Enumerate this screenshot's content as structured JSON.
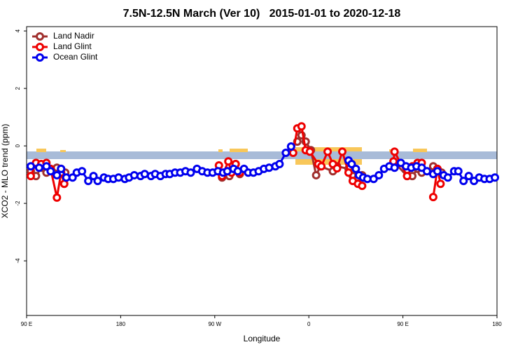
{
  "chart_data": {
    "type": "line",
    "title": "7.5N-12.5N March (Ver 10)   2015-01-01 to 2020-12-18",
    "xlabel": "Longitude",
    "ylabel": "XCO2 - MLO trend (ppm)",
    "xlim": [
      90,
      540
    ],
    "ylim": [
      -5.9,
      4.15
    ],
    "xticks": [
      {
        "value": 90,
        "label": "90 E"
      },
      180,
      {
        "value": 270,
        "label": "90 W"
      },
      {
        "value": 360,
        "label": "0"
      },
      {
        "value": 450,
        "label": "90 E"
      },
      {
        "value": 540,
        "label": "180"
      }
    ],
    "yticks": [
      -4,
      -2,
      0,
      2,
      4
    ],
    "legend": "upper left",
    "series": [
      {
        "name": "Land Nadir",
        "color": "#a0302e",
        "x": [
          94,
          99,
          104,
          109,
          119,
          123,
          127,
          null,
          277,
          284,
          288,
          290,
          294,
          null,
          349,
          353,
          357,
          362,
          367,
          371,
          383,
          387,
          398,
          402,
          407,
          411,
          null,
          438,
          441,
          454,
          459,
          464,
          468,
          479,
          483,
          487
        ],
        "values": [
          -0.88,
          -1.05,
          -0.76,
          -0.93,
          -0.76,
          -0.8,
          -0.93,
          null,
          -1.1,
          -1.05,
          -0.8,
          -0.63,
          -0.98,
          null,
          0.15,
          0.37,
          0.15,
          -0.15,
          -1.02,
          -0.71,
          -0.88,
          -0.71,
          -0.8,
          -1.05,
          -1.1,
          -1.02,
          null,
          -0.71,
          -0.54,
          -1.05,
          -1.05,
          -0.8,
          -0.93,
          -0.71,
          -0.8,
          -0.93
        ]
      },
      {
        "name": "Land Glint",
        "color": "#ee0000",
        "x": [
          94,
          99,
          104,
          109,
          113,
          119,
          123,
          126,
          null,
          274,
          277,
          283,
          286,
          290,
          294,
          null,
          345,
          349,
          353,
          357,
          361,
          369,
          372,
          378,
          383,
          387,
          392,
          398,
          402,
          407,
          411,
          null,
          441,
          442,
          454,
          459,
          464,
          468,
          null,
          479,
          483,
          486
        ],
        "values": [
          -1.05,
          -0.59,
          -0.63,
          -0.59,
          -0.8,
          -1.8,
          -0.93,
          -1.32,
          null,
          -0.68,
          -1.05,
          -0.54,
          -0.93,
          -0.63,
          -0.93,
          null,
          -0.24,
          0.61,
          0.68,
          -0.15,
          -0.2,
          -0.63,
          -0.71,
          -0.2,
          -0.63,
          -0.78,
          -0.2,
          -0.93,
          -1.22,
          -1.32,
          -1.39,
          null,
          -0.54,
          -0.2,
          -1.05,
          -0.71,
          -0.59,
          -0.59,
          null,
          -1.78,
          -0.8,
          -1.32
        ]
      },
      {
        "name": "Ocean Glint",
        "color": "#0000ee",
        "x": [
          94,
          102,
          109,
          113,
          119,
          123,
          128,
          134,
          138,
          143,
          149,
          154,
          158,
          164,
          168,
          173,
          178,
          184,
          188,
          193,
          199,
          203,
          209,
          213,
          218,
          223,
          227,
          232,
          237,
          242,
          247,
          253,
          258,
          263,
          268,
          273,
          278,
          282,
          288,
          292,
          298,
          302,
          307,
          312,
          317,
          322,
          328,
          332,
          338,
          343,
          null,
          398,
          401,
          405,
          408,
          412,
          416,
          422,
          427,
          432,
          437,
          442,
          448,
          453,
          458,
          463,
          468,
          473,
          479,
          483,
          489,
          493,
          499,
          503,
          508,
          513,
          518,
          523,
          528,
          533,
          538
        ],
        "values": [
          -0.71,
          -0.76,
          -0.71,
          -0.88,
          -1.02,
          -0.8,
          -1.1,
          -1.1,
          -0.93,
          -0.88,
          -1.22,
          -1.05,
          -1.22,
          -1.1,
          -1.15,
          -1.15,
          -1.1,
          -1.15,
          -1.1,
          -1.02,
          -1.05,
          -0.98,
          -1.05,
          -0.98,
          -1.05,
          -0.98,
          -0.98,
          -0.93,
          -0.93,
          -0.88,
          -0.93,
          -0.8,
          -0.88,
          -0.93,
          -0.93,
          -0.88,
          -0.93,
          -0.88,
          -0.8,
          -0.88,
          -0.8,
          -0.93,
          -0.93,
          -0.88,
          -0.8,
          -0.76,
          -0.71,
          -0.63,
          -0.24,
          -0.02,
          null,
          -0.51,
          -0.63,
          -0.8,
          -1.02,
          -1.1,
          -1.15,
          -1.15,
          -1.02,
          -0.8,
          -0.71,
          -0.76,
          -0.59,
          -0.71,
          -0.76,
          -0.71,
          -0.76,
          -0.88,
          -0.98,
          -0.88,
          -1.02,
          -1.1,
          -0.88,
          -0.88,
          -1.22,
          -1.05,
          -1.22,
          -1.1,
          -1.15,
          -1.15,
          -1.1
        ]
      }
    ]
  }
}
